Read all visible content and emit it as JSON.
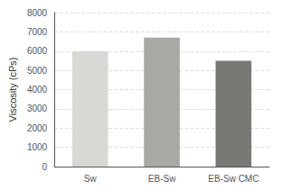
{
  "chart_data": {
    "type": "bar",
    "ylabel": "Viscosity (cPs)",
    "categories": [
      "Sw",
      "EB-Sw",
      "EB-Sw CMC"
    ],
    "values": [
      6000,
      6700,
      5500
    ],
    "colors": [
      "#d8d8d4",
      "#a8a8a4",
      "#787874"
    ],
    "ylim": [
      0,
      8000
    ],
    "yticks": [
      0,
      1000,
      2000,
      3000,
      4000,
      5000,
      6000,
      7000,
      8000
    ],
    "grid": true
  }
}
